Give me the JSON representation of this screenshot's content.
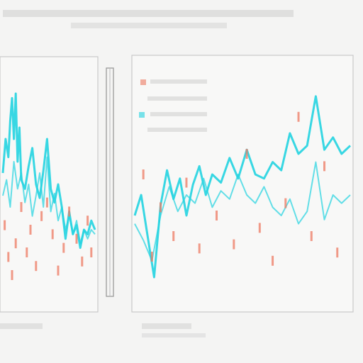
{
  "colors": {
    "background": "#f4f4f3",
    "panel_bg": "#f8f8f7",
    "panel_border": "#c9c9c9",
    "cyan": "#22d3e0",
    "red": "#ee7a62",
    "scale_bar": "#9a9a9a",
    "text": "#6e6e6e"
  },
  "chart_data": [
    {
      "type": "line",
      "title": "",
      "xlabel": "",
      "ylabel": "",
      "grid": false,
      "xlim": [
        0,
        100
      ],
      "ylim": [
        0,
        100
      ],
      "series": [
        {
          "color": "#22d3e0",
          "x": [
            0,
            3,
            6,
            8,
            10,
            12,
            14,
            16,
            18,
            20,
            24,
            28,
            32,
            36,
            40,
            44,
            48,
            52,
            56,
            60,
            64,
            68,
            72,
            76,
            80,
            84,
            88,
            92,
            96,
            100
          ],
          "y": [
            55,
            70,
            62,
            78,
            88,
            70,
            90,
            60,
            75,
            52,
            48,
            58,
            66,
            50,
            44,
            56,
            70,
            48,
            42,
            50,
            40,
            26,
            38,
            28,
            32,
            22,
            30,
            28,
            34,
            30
          ]
        },
        {
          "color": "#22d3e0",
          "x": [
            0,
            4,
            8,
            12,
            16,
            20,
            24,
            28,
            32,
            36,
            40,
            44,
            48,
            52,
            56,
            60,
            64,
            68,
            72,
            76,
            80,
            84,
            88,
            92,
            96,
            100
          ],
          "y": [
            45,
            52,
            40,
            60,
            48,
            55,
            42,
            50,
            36,
            45,
            55,
            40,
            62,
            38,
            46,
            34,
            40,
            30,
            36,
            28,
            34,
            24,
            30,
            26,
            30,
            28
          ]
        },
        {
          "color": "#ee7a62",
          "type": "scatter",
          "x": [
            2,
            6,
            10,
            14,
            20,
            26,
            30,
            36,
            42,
            48,
            54,
            60,
            66,
            72,
            80,
            86,
            92,
            96
          ],
          "y": [
            32,
            18,
            10,
            24,
            40,
            20,
            30,
            14,
            36,
            42,
            28,
            12,
            22,
            38,
            26,
            16,
            34,
            20
          ]
        }
      ]
    },
    {
      "type": "line",
      "title": "",
      "xlabel": "",
      "ylabel": "",
      "grid": false,
      "xlim": [
        0,
        100
      ],
      "ylim": [
        0,
        100
      ],
      "legend": "top-left",
      "series": [
        {
          "color": "#22d3e0",
          "x": [
            0,
            3,
            6,
            9,
            12,
            15,
            18,
            21,
            24,
            27,
            30,
            33,
            36,
            40,
            44,
            48,
            52,
            56,
            60,
            64,
            68,
            72,
            76,
            80,
            84,
            88,
            92,
            96,
            100
          ],
          "y": [
            40,
            50,
            30,
            10,
            45,
            62,
            48,
            58,
            40,
            55,
            64,
            50,
            60,
            56,
            68,
            58,
            72,
            60,
            58,
            66,
            62,
            80,
            70,
            74,
            98,
            72,
            78,
            70,
            74
          ]
        },
        {
          "color": "#22d3e0",
          "x": [
            0,
            4,
            8,
            12,
            16,
            20,
            24,
            28,
            32,
            36,
            40,
            44,
            48,
            52,
            56,
            60,
            64,
            68,
            72,
            76,
            80,
            84,
            88,
            92,
            96,
            100
          ],
          "y": [
            36,
            28,
            18,
            40,
            54,
            42,
            50,
            46,
            58,
            44,
            52,
            48,
            60,
            50,
            46,
            54,
            44,
            40,
            48,
            36,
            42,
            66,
            38,
            50,
            46,
            50
          ]
        },
        {
          "color": "#ee7a62",
          "type": "scatter",
          "x": [
            4,
            8,
            12,
            18,
            24,
            30,
            38,
            46,
            52,
            58,
            64,
            70,
            76,
            82,
            88,
            94
          ],
          "y": [
            60,
            20,
            44,
            30,
            56,
            24,
            40,
            26,
            70,
            34,
            18,
            46,
            88,
            30,
            64,
            22
          ]
        }
      ]
    }
  ]
}
